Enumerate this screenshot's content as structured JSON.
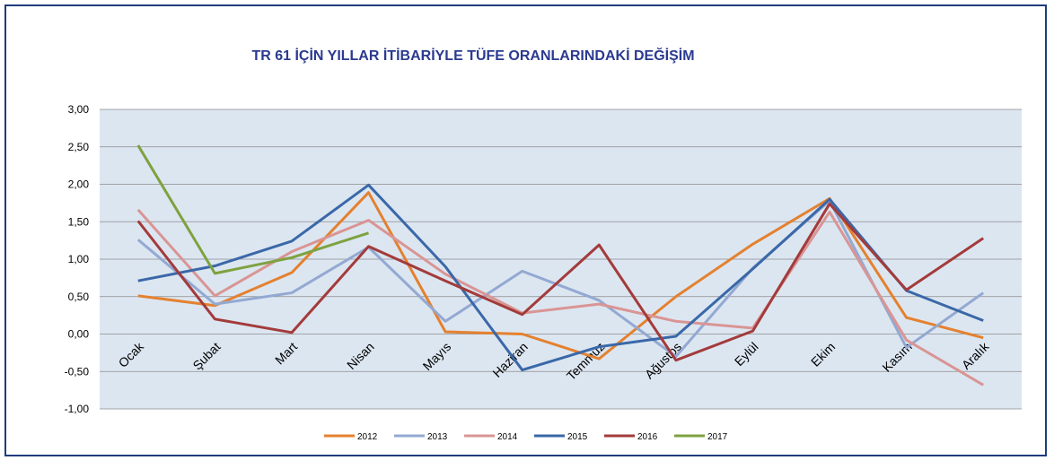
{
  "chart_data": {
    "type": "line",
    "title": "TR 61 İÇİN YILLAR İTİBARİYLE TÜFE ORANLARINDAKİ DEĞİŞİM",
    "categories": [
      "Ocak",
      "Şubat",
      "Mart",
      "Nisan",
      "Mayıs",
      "Haziran",
      "Temmuz",
      "Ağustos",
      "Eylül",
      "Ekim",
      "Kasım",
      "Aralık"
    ],
    "series": [
      {
        "name": "2012",
        "color": "#e4812f",
        "values": [
          0.51,
          0.38,
          0.82,
          1.89,
          0.03,
          0.0,
          -0.33,
          0.5,
          1.2,
          1.81,
          0.22,
          -0.05
        ]
      },
      {
        "name": "2013",
        "color": "#93a9d2",
        "values": [
          1.26,
          0.4,
          0.55,
          1.16,
          0.17,
          0.84,
          0.45,
          -0.3,
          0.88,
          1.78,
          -0.18,
          0.55
        ]
      },
      {
        "name": "2014",
        "color": "#d99594",
        "values": [
          1.66,
          0.51,
          1.1,
          1.52,
          0.8,
          0.28,
          0.4,
          0.17,
          0.08,
          1.63,
          -0.08,
          -0.68
        ]
      },
      {
        "name": "2015",
        "color": "#3a68a8",
        "values": [
          0.71,
          0.91,
          1.24,
          1.99,
          0.9,
          -0.48,
          -0.17,
          -0.03,
          0.87,
          1.8,
          0.58,
          0.18
        ]
      },
      {
        "name": "2016",
        "color": "#a33b3b",
        "values": [
          1.51,
          0.2,
          0.02,
          1.17,
          0.71,
          0.26,
          1.19,
          -0.35,
          0.04,
          1.74,
          0.59,
          1.28
        ]
      },
      {
        "name": "2017",
        "color": "#7ea23f",
        "values": [
          2.52,
          0.81,
          1.02,
          1.35,
          null,
          null,
          null,
          null,
          null,
          null,
          null,
          null
        ]
      }
    ],
    "ylim": [
      -1,
      3
    ],
    "yticks": [
      {
        "value": -1,
        "label": "-1,00"
      },
      {
        "value": -0.5,
        "label": "-0,50"
      },
      {
        "value": 0,
        "label": "0,00"
      },
      {
        "value": 0.5,
        "label": "0,50"
      },
      {
        "value": 1,
        "label": "1,00"
      },
      {
        "value": 1.5,
        "label": "1,50"
      },
      {
        "value": 2,
        "label": "2,00"
      },
      {
        "value": 2.5,
        "label": "2,50"
      },
      {
        "value": 3,
        "label": "3,00"
      }
    ],
    "grid": true,
    "legend": "bottom"
  }
}
